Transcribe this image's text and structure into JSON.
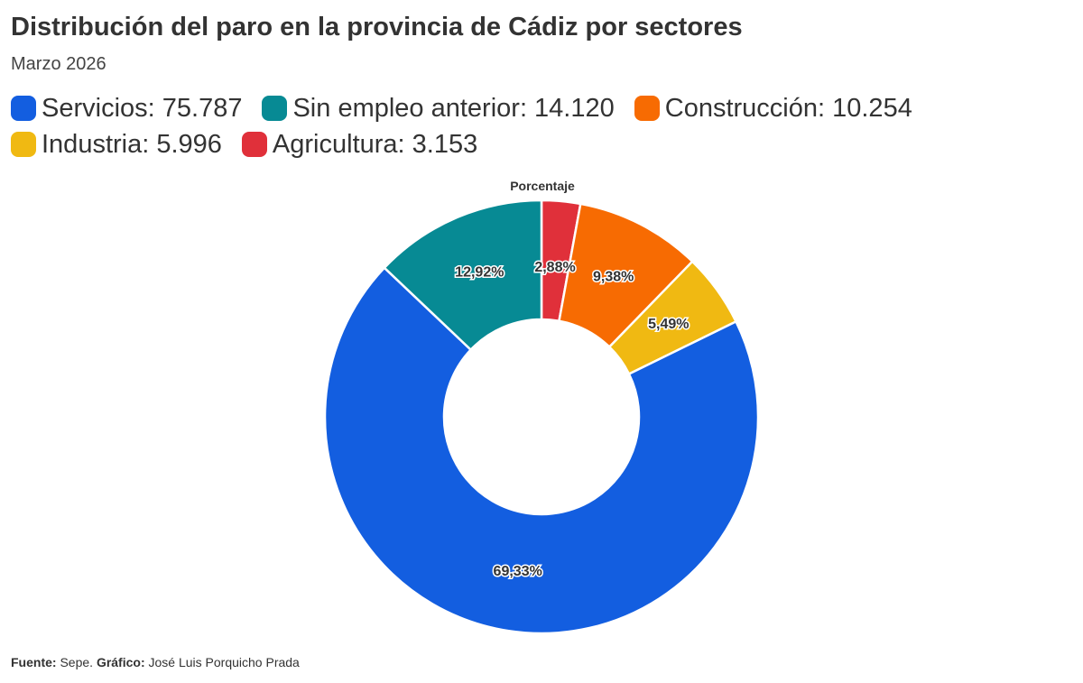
{
  "title": "Distribución del paro en la provincia de Cádiz por sectores",
  "subtitle": "Marzo 2026",
  "legend": [
    {
      "label": "Servicios: 75.787",
      "color": "#135ee0"
    },
    {
      "label": "Sin empleo anterior: 14.120",
      "color": "#078a94"
    },
    {
      "label": "Construcción: 10.254",
      "color": "#f76b02"
    },
    {
      "label": "Industria: 5.996",
      "color": "#f0b912"
    },
    {
      "label": "Agricultura: 3.153",
      "color": "#e0303a"
    }
  ],
  "chart_data": {
    "type": "pie",
    "variant": "donut",
    "title": "Porcentaje",
    "start": "top",
    "direction": "clockwise",
    "slices": [
      {
        "name": "Agricultura",
        "value": 3153,
        "percent_label": "2,88%",
        "color": "#e0303a"
      },
      {
        "name": "Construcción",
        "value": 10254,
        "percent_label": "9,38%",
        "color": "#f76b02"
      },
      {
        "name": "Industria",
        "value": 5996,
        "percent_label": "5,49%",
        "color": "#f0b912"
      },
      {
        "name": "Servicios",
        "value": 75787,
        "percent_label": "69,33%",
        "color": "#135ee0"
      },
      {
        "name": "Sin empleo anterior",
        "value": 14120,
        "percent_label": "12,92%",
        "color": "#078a94"
      }
    ]
  },
  "footer": {
    "source_label": "Fuente:",
    "source": "Sepe.",
    "chart_label": "Gráfico:",
    "author": "José Luis Porquicho Prada"
  }
}
